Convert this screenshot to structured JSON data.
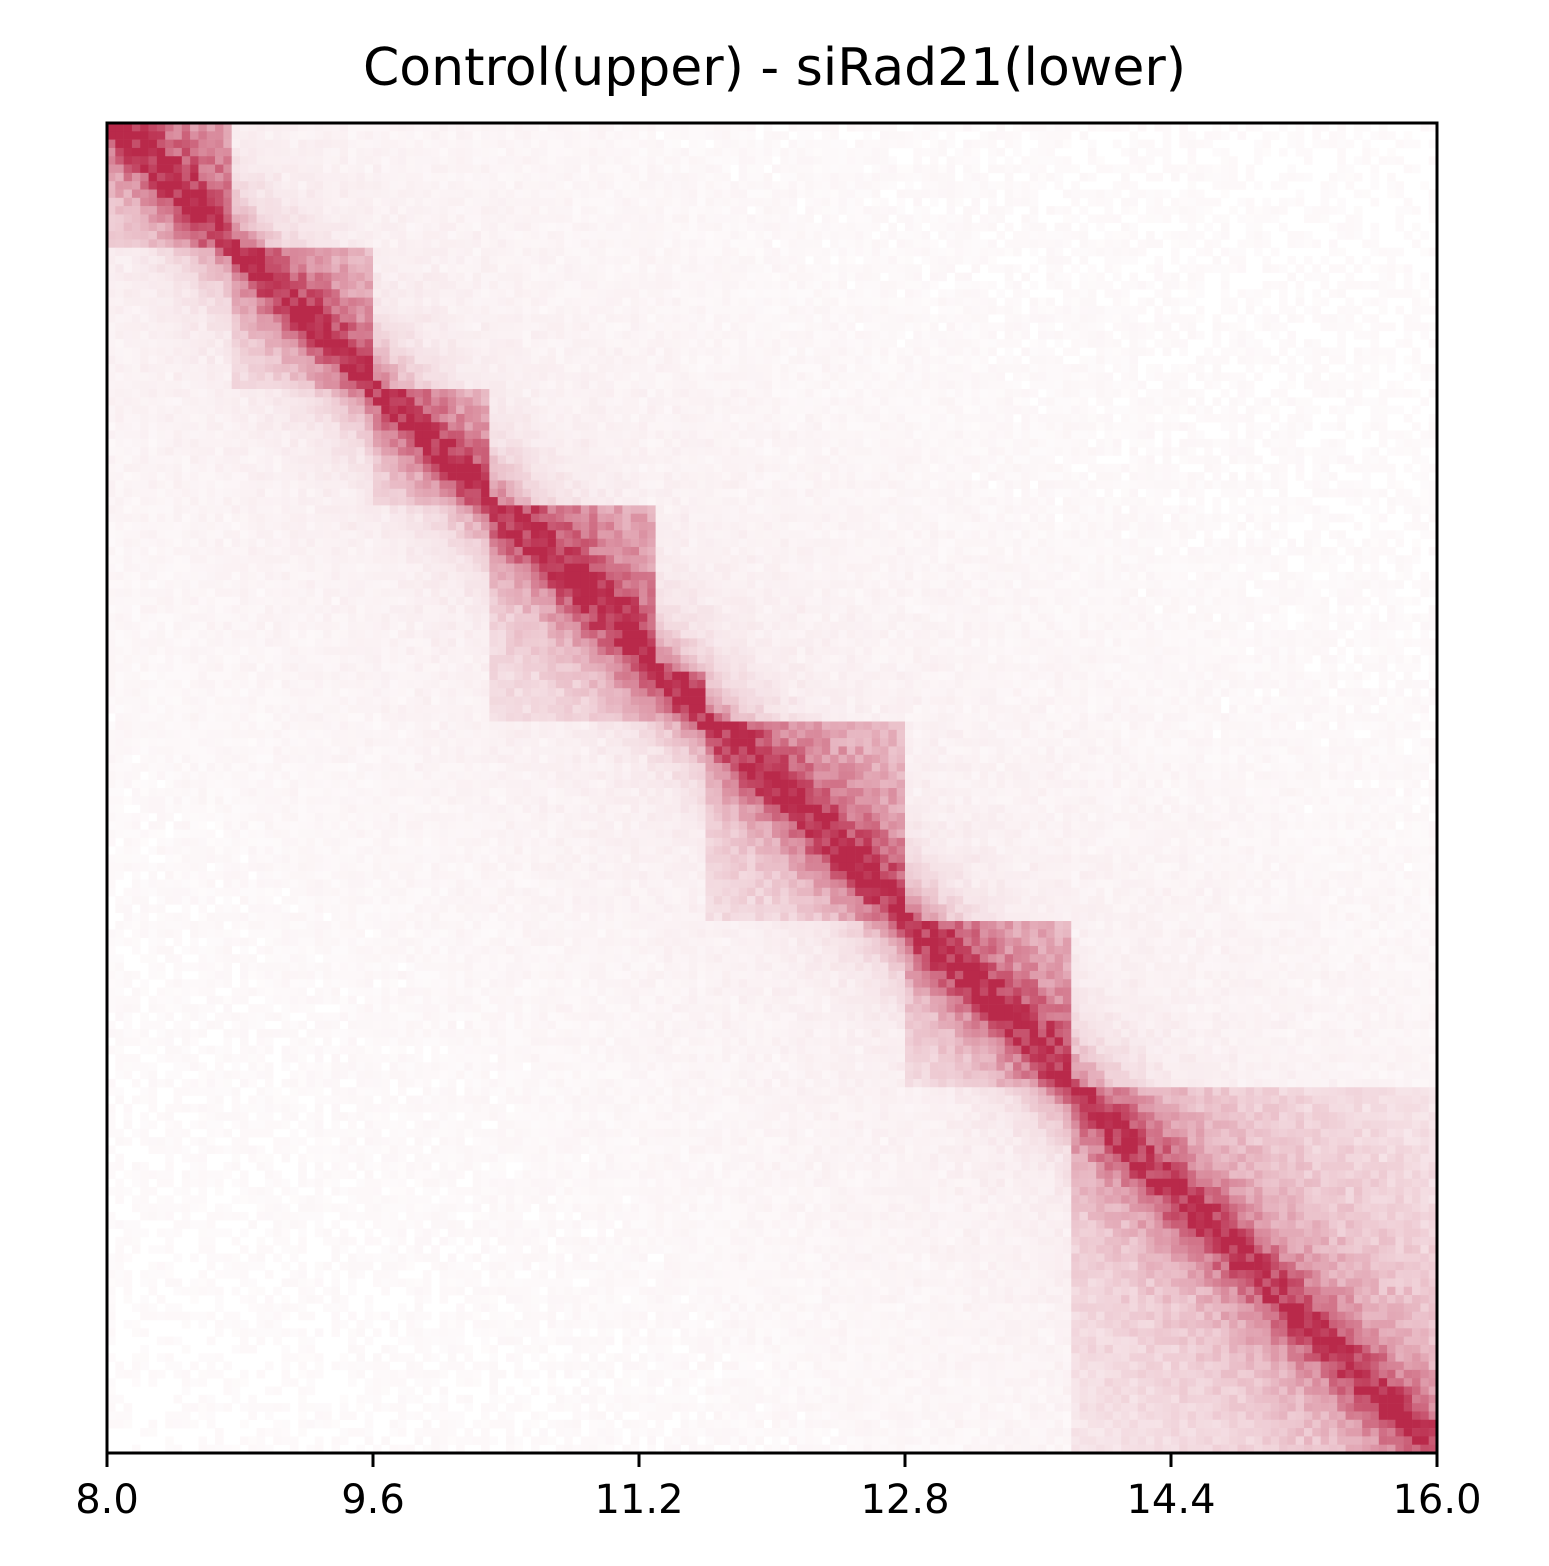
{
  "chart_data": {
    "type": "heatmap",
    "title": "Control(upper) - siRad21(lower)",
    "xlabel": "",
    "ylabel": "",
    "xlim": [
      8.0,
      16.0
    ],
    "ylim": [
      8.0,
      16.0
    ],
    "x_ticks": [
      "8.0",
      "9.6",
      "11.2",
      "12.8",
      "14.4",
      "16.0"
    ],
    "x_tick_values": [
      8.0,
      9.6,
      11.2,
      12.8,
      14.4,
      16.0
    ],
    "y_ticks": [],
    "grid": false,
    "colormap": [
      "#ffffff",
      "#b9294a"
    ],
    "color_accent": "#b9294a",
    "upper_triangle": "Control",
    "lower_triangle": "siRad21",
    "domains_upper": [
      {
        "start": 8.0,
        "end": 8.73,
        "strength": 0.55
      },
      {
        "start": 8.73,
        "end": 9.62,
        "strength": 0.45
      },
      {
        "start": 9.62,
        "end": 10.28,
        "strength": 0.45
      },
      {
        "start": 10.28,
        "end": 11.3,
        "strength": 0.6
      },
      {
        "start": 11.3,
        "end": 11.58,
        "strength": 0.5
      },
      {
        "start": 11.58,
        "end": 12.8,
        "strength": 0.55
      },
      {
        "start": 12.8,
        "end": 13.8,
        "strength": 0.55
      },
      {
        "start": 13.8,
        "end": 16.0,
        "strength": 0.35
      }
    ],
    "domains_lower": [
      {
        "start": 8.0,
        "end": 8.73,
        "strength": 0.2
      },
      {
        "start": 8.73,
        "end": 9.62,
        "strength": 0.15
      },
      {
        "start": 9.62,
        "end": 10.28,
        "strength": 0.15
      },
      {
        "start": 10.28,
        "end": 11.58,
        "strength": 0.2
      },
      {
        "start": 11.58,
        "end": 12.8,
        "strength": 0.2
      },
      {
        "start": 12.8,
        "end": 13.8,
        "strength": 0.2
      },
      {
        "start": 13.8,
        "end": 16.0,
        "strength": 0.3
      }
    ]
  }
}
